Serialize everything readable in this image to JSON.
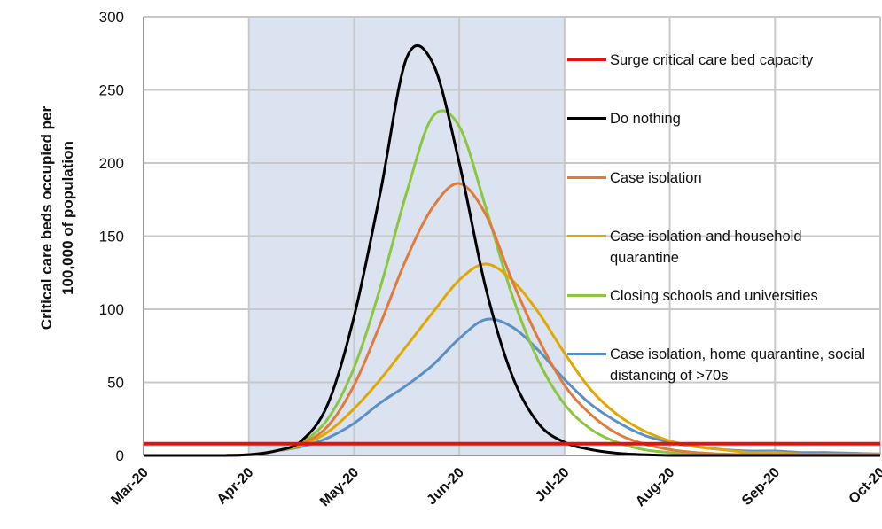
{
  "chart_data": {
    "type": "line",
    "y_label": "Critical care beds occupied per 100,000 of population",
    "categories": [
      "Mar-20",
      null,
      null,
      null,
      "Apr-20",
      null,
      null,
      null,
      "May-20",
      null,
      null,
      null,
      "Jun-20",
      null,
      null,
      null,
      "Jul-20",
      null,
      null,
      null,
      "Aug-20",
      null,
      null,
      null,
      "Sep-20",
      null,
      null,
      null,
      "Oct-20"
    ],
    "shaded_span": [
      "Apr-20",
      "Jul-20"
    ],
    "shade_color": "#dbe2f0",
    "ylim": [
      0,
      300
    ],
    "yticks": [
      0,
      50,
      100,
      150,
      200,
      250,
      300
    ],
    "grid": true,
    "series": [
      {
        "name": "Surge critical care bed capacity",
        "color": "#e3120b",
        "values": [
          8,
          8,
          8,
          8,
          8,
          8,
          8,
          8,
          8,
          8,
          8,
          8,
          8,
          8,
          8,
          8,
          8,
          8,
          8,
          8,
          8,
          8,
          8,
          8,
          8,
          8,
          8,
          8,
          8
        ]
      },
      {
        "name": "Do nothing",
        "color": "#000000",
        "values": [
          0,
          0,
          0,
          0,
          0.5,
          3,
          10,
          35,
          95,
          180,
          272,
          268,
          200,
          115,
          55,
          22,
          9,
          4,
          1.5,
          0.5,
          0,
          0,
          0,
          0,
          0,
          0,
          0,
          0,
          0
        ]
      },
      {
        "name": "Case isolation",
        "color": "#e07b39",
        "values": [
          0,
          0,
          0,
          0,
          0.5,
          3,
          8,
          20,
          48,
          90,
          135,
          170,
          186,
          165,
          120,
          80,
          48,
          28,
          15,
          8,
          4,
          2,
          1,
          0.5,
          0.5,
          0.5,
          0.5,
          0.5,
          0.5
        ]
      },
      {
        "name": "Case isolation and household quarantine",
        "color": "#e0a800",
        "values": [
          0,
          0,
          0,
          0,
          0.5,
          3,
          7,
          16,
          32,
          52,
          75,
          98,
          120,
          131,
          120,
          98,
          70,
          45,
          28,
          17,
          10,
          6,
          4,
          2,
          2,
          1,
          1,
          1,
          1
        ]
      },
      {
        "name": "Closing schools and universities",
        "color": "#8cc63f",
        "values": [
          0,
          0,
          0,
          0,
          0.5,
          3,
          9,
          25,
          60,
          115,
          180,
          232,
          225,
          170,
          110,
          65,
          35,
          18,
          9,
          4,
          2,
          1,
          0.5,
          0.5,
          0,
          0,
          0,
          0,
          0
        ]
      },
      {
        "name": "Case isolation, home quarantine, social distancing of >70s",
        "color": "#5b8fc7",
        "values": [
          0,
          0,
          0,
          0,
          0.5,
          3,
          6,
          12,
          22,
          36,
          48,
          62,
          80,
          93,
          88,
          72,
          52,
          35,
          23,
          14,
          9,
          6,
          4,
          3,
          3,
          2,
          2,
          1.5,
          1
        ]
      }
    ]
  }
}
